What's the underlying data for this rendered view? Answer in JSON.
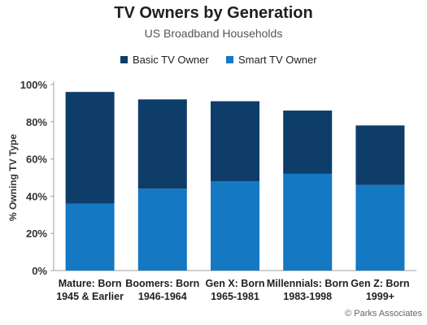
{
  "chart_data": {
    "type": "bar",
    "stacked": true,
    "title": "TV Owners by Generation",
    "subtitle": "US Broadband Households",
    "ylabel": "% Owning TV Type",
    "ylim": [
      0,
      100
    ],
    "yticks": [
      0,
      20,
      40,
      60,
      80,
      100
    ],
    "ytick_format": "%",
    "grid": false,
    "legend_position": "top",
    "categories": [
      [
        "Mature: Born",
        "1945 & Earlier"
      ],
      [
        "Boomers: Born",
        "1946-1964"
      ],
      [
        "Gen X: Born",
        "1965-1981"
      ],
      [
        "Millennials: Born",
        "1983-1998"
      ],
      [
        "Gen Z: Born",
        "1999+"
      ]
    ],
    "series": [
      {
        "name": "Smart TV Owner",
        "color": "#1478c2",
        "values": [
          36,
          44,
          48,
          52,
          46
        ]
      },
      {
        "name": "Basic TV Owner",
        "color": "#0e3d69",
        "values": [
          60,
          48,
          43,
          34,
          32
        ]
      }
    ],
    "legend_order": [
      "Basic TV Owner",
      "Smart TV Owner"
    ]
  },
  "footer": {
    "credit": "© Parks Associates"
  }
}
